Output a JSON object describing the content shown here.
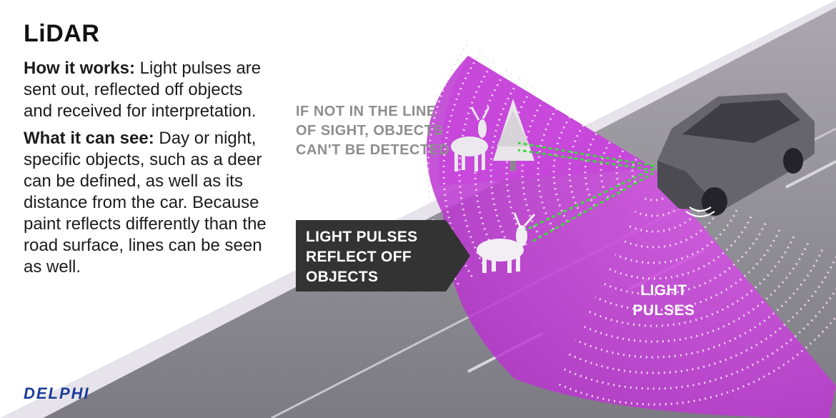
{
  "title": "LiDAR",
  "how_it_works": {
    "heading": "How it works:",
    "body": " Light pulses are sent out, reflected off objects and received for interpretation."
  },
  "what_it_can_see": {
    "heading": "What it can see:",
    "body": " Day or night, specific objects, such as a deer can be defined, as well as its distance from the car. Because paint reflects differently than the road surface, lines can be seen as well."
  },
  "line_of_sight_label": "IF NOT IN THE LINE OF SIGHT, OBJECTS CAN'T BE DETECTED",
  "callout_label": "LIGHT PULSES REFLECT OFF OBJECTS",
  "pulses_label": "LIGHT PULSES",
  "logo": "DELPHI",
  "colors": {
    "beam": "#c23dd6",
    "road": "#8a8790",
    "callout_bg": "#333333",
    "logo": "#1a3c96",
    "reflection": "#3bd83b"
  }
}
